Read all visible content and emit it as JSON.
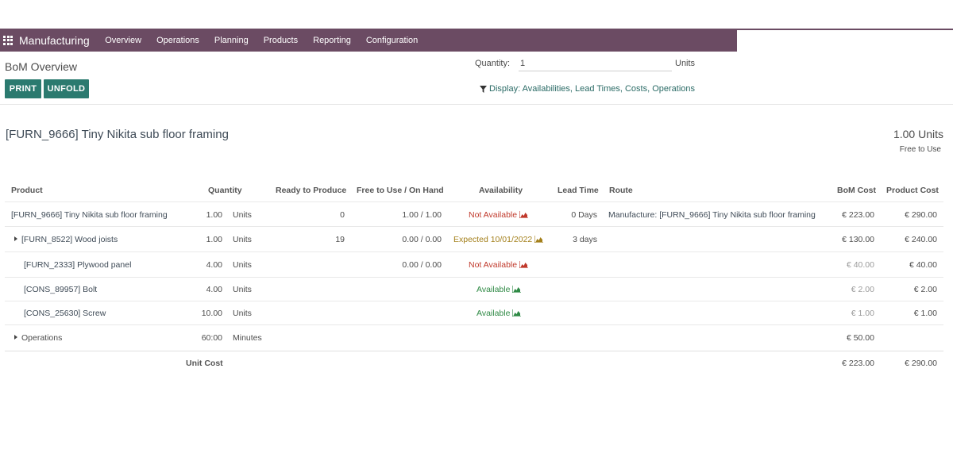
{
  "nav": {
    "brand": "Manufacturing",
    "menu": [
      "Overview",
      "Operations",
      "Planning",
      "Products",
      "Reporting",
      "Configuration"
    ]
  },
  "control_panel": {
    "title": "BoM Overview",
    "print_label": "PRINT",
    "unfold_label": "UNFOLD",
    "quantity_label": "Quantity:",
    "quantity_value": "1",
    "quantity_unit": "Units",
    "display_filter": "Display: Availabilities, Lead Times, Costs, Operations"
  },
  "product": {
    "title": "[FURN_9666] Tiny Nikita sub floor framing",
    "quantity": "1.00 Units",
    "free_to_use": "Free to Use"
  },
  "table": {
    "headers": {
      "product": "Product",
      "quantity": "Quantity",
      "ready": "Ready to Produce",
      "free": "Free to Use / On Hand",
      "availability": "Availability",
      "lead": "Lead Time",
      "route": "Route",
      "bom_cost": "BoM Cost",
      "product_cost": "Product Cost"
    },
    "rows": [
      {
        "product": "[FURN_9666] Tiny Nikita sub floor framing",
        "qty": "1.00",
        "unit": "Units",
        "ready": "0",
        "free": "1.00 / 1.00",
        "availability": "Not Available",
        "availability_status": "red",
        "lead": "0 Days",
        "route": "Manufacture: [FURN_9666] Tiny Nikita sub floor framing",
        "bom_cost": "€ 223.00",
        "product_cost": "€ 290.00",
        "bom_muted": false
      },
      {
        "product": "[FURN_8522] Wood joists",
        "qty": "1.00",
        "unit": "Units",
        "ready": "19",
        "free": "0.00 / 0.00",
        "availability": "Expected 10/01/2022",
        "availability_status": "orange",
        "lead": "3 days",
        "route": "",
        "bom_cost": "€ 130.00",
        "product_cost": "€ 240.00",
        "bom_muted": false,
        "expandable": true
      },
      {
        "product": "[FURN_2333] Plywood panel",
        "qty": "4.00",
        "unit": "Units",
        "ready": "",
        "free": "0.00 / 0.00",
        "availability": "Not Available",
        "availability_status": "red",
        "lead": "",
        "route": "",
        "bom_cost": "€ 40.00",
        "product_cost": "€ 40.00",
        "bom_muted": true
      },
      {
        "product": "[CONS_89957] Bolt",
        "qty": "4.00",
        "unit": "Units",
        "ready": "",
        "free": "",
        "availability": "Available",
        "availability_status": "green",
        "lead": "",
        "route": "",
        "bom_cost": "€ 2.00",
        "product_cost": "€ 2.00",
        "bom_muted": true
      },
      {
        "product": "[CONS_25630] Screw",
        "qty": "10.00",
        "unit": "Units",
        "ready": "",
        "free": "",
        "availability": "Available",
        "availability_status": "green",
        "lead": "",
        "route": "",
        "bom_cost": "€ 1.00",
        "product_cost": "€ 1.00",
        "bom_muted": true
      }
    ],
    "operations": {
      "label": "Operations",
      "qty": "60:00",
      "unit": "Minutes",
      "bom_cost": "€ 50.00"
    },
    "unit_cost": {
      "label": "Unit Cost",
      "bom_cost": "€ 223.00",
      "product_cost": "€ 290.00"
    }
  },
  "colors": {
    "navbar": "#6b4b63",
    "primary_button": "#2b7a6f",
    "not_available": "#c0392b",
    "expected": "#a37f1a",
    "available": "#2f8a45"
  }
}
